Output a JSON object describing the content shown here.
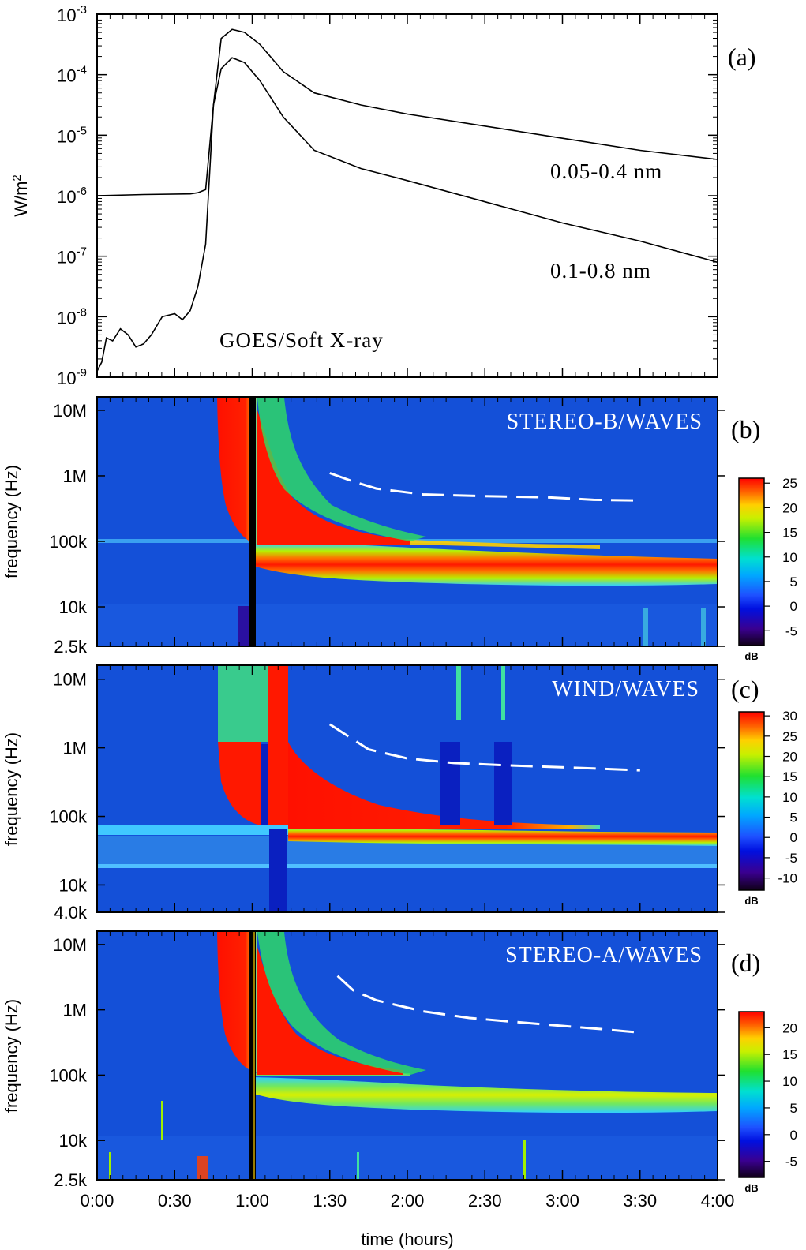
{
  "figure": {
    "time_axis": {
      "label": "time (hours)",
      "ticks": [
        "0:00",
        "0:30",
        "1:00",
        "1:30",
        "2:00",
        "2:30",
        "3:00",
        "3:30",
        "4:00"
      ],
      "range_hours": [
        0,
        4
      ]
    },
    "colors": {
      "spectrum_background": "#1450d8",
      "curve": "#000000",
      "dashed_line": "#ffffff"
    }
  },
  "chart_data": [
    {
      "id": "a",
      "type": "line",
      "tag": "(a)",
      "ylabel_base": "W/m",
      "ylabel_exp": "2",
      "annotation": "GOES/Soft X-ray",
      "ylim_log10": [
        -9,
        -3
      ],
      "ytick_base": "10",
      "yticks_exp": [
        "-9",
        "-8",
        "-7",
        "-6",
        "-5",
        "-4",
        "-3"
      ],
      "series": [
        {
          "name": "0.05-0.4 nm",
          "x": [
            0.0,
            0.3,
            0.6,
            0.65,
            0.7,
            0.75,
            0.8,
            0.87,
            0.95,
            1.05,
            1.2,
            1.4,
            1.7,
            2.0,
            2.5,
            3.0,
            3.5,
            4.0
          ],
          "log10_y": [
            -6.0,
            -5.98,
            -5.97,
            -5.95,
            -5.9,
            -4.5,
            -3.4,
            -3.25,
            -3.3,
            -3.5,
            -3.95,
            -4.3,
            -4.5,
            -4.65,
            -4.85,
            -5.05,
            -5.25,
            -5.4
          ]
        },
        {
          "name": "0.1-0.8 nm",
          "x": [
            0.0,
            0.03,
            0.06,
            0.1,
            0.15,
            0.2,
            0.25,
            0.3,
            0.35,
            0.42,
            0.5,
            0.55,
            0.6,
            0.65,
            0.7,
            0.75,
            0.8,
            0.87,
            0.95,
            1.05,
            1.2,
            1.4,
            1.7,
            2.0,
            2.5,
            3.0,
            3.5,
            4.0
          ],
          "log10_y": [
            -8.9,
            -8.75,
            -8.35,
            -8.4,
            -8.2,
            -8.3,
            -8.5,
            -8.45,
            -8.3,
            -8.0,
            -7.95,
            -8.05,
            -7.9,
            -7.5,
            -6.8,
            -4.5,
            -3.9,
            -3.72,
            -3.8,
            -4.1,
            -4.7,
            -5.25,
            -5.55,
            -5.75,
            -6.1,
            -6.45,
            -6.75,
            -7.1
          ]
        }
      ]
    },
    {
      "id": "b",
      "type": "heatmap",
      "tag": "(b)",
      "instrument": "STEREO-B/WAVES",
      "ylabel": "frequency (Hz)",
      "ylim_hz": [
        2500,
        16000000
      ],
      "yticks": [
        {
          "hz": 10000000,
          "label": "10M"
        },
        {
          "hz": 1000000,
          "label": "1M"
        },
        {
          "hz": 100000,
          "label": "100k"
        },
        {
          "hz": 10000,
          "label": "10k"
        },
        {
          "hz": 2500,
          "label": "2.5k"
        }
      ],
      "colorbar": {
        "unit": "dB",
        "ticks": [
          "25",
          "20",
          "15",
          "10",
          "5",
          "0",
          "-5"
        ],
        "range": [
          -8,
          26
        ]
      },
      "dashed_fit": {
        "x": [
          1.5,
          1.65,
          1.8,
          2.1,
          2.5,
          2.9,
          3.2,
          3.5
        ],
        "hz": [
          1100000,
          820000,
          640000,
          520000,
          490000,
          470000,
          430000,
          420000
        ]
      }
    },
    {
      "id": "c",
      "type": "heatmap",
      "tag": "(c)",
      "instrument": "WIND/WAVES",
      "ylabel": "frequency (Hz)",
      "ylim_hz": [
        4000,
        16000000
      ],
      "yticks": [
        {
          "hz": 10000000,
          "label": "10M"
        },
        {
          "hz": 1000000,
          "label": "1M"
        },
        {
          "hz": 100000,
          "label": "100k"
        },
        {
          "hz": 10000,
          "label": "10k"
        },
        {
          "hz": 4000,
          "label": "4.0k"
        }
      ],
      "colorbar": {
        "unit": "dB",
        "ticks": [
          "30",
          "25",
          "20",
          "15",
          "10",
          "5",
          "0",
          "-5",
          "-10"
        ],
        "range": [
          -13,
          31
        ]
      },
      "dashed_fit": {
        "x": [
          1.5,
          1.75,
          2.0,
          2.3,
          2.6,
          2.9,
          3.2,
          3.5
        ],
        "hz": [
          2200000,
          950000,
          700000,
          600000,
          560000,
          530000,
          500000,
          470000
        ]
      }
    },
    {
      "id": "d",
      "type": "heatmap",
      "tag": "(d)",
      "instrument": "STEREO-A/WAVES",
      "ylabel": "frequency (Hz)",
      "ylim_hz": [
        2500,
        16000000
      ],
      "yticks": [
        {
          "hz": 10000000,
          "label": "10M"
        },
        {
          "hz": 1000000,
          "label": "1M"
        },
        {
          "hz": 100000,
          "label": "100k"
        },
        {
          "hz": 10000,
          "label": "10k"
        },
        {
          "hz": 2500,
          "label": "2.5k"
        }
      ],
      "colorbar": {
        "unit": "dB",
        "ticks": [
          "20",
          "15",
          "10",
          "5",
          "0",
          "-5"
        ],
        "range": [
          -8,
          23
        ]
      },
      "dashed_fit": {
        "x": [
          1.55,
          1.65,
          1.8,
          2.1,
          2.4,
          2.8,
          3.2,
          3.5
        ],
        "hz": [
          3300000,
          2000000,
          1400000,
          950000,
          750000,
          620000,
          520000,
          450000
        ]
      }
    }
  ]
}
